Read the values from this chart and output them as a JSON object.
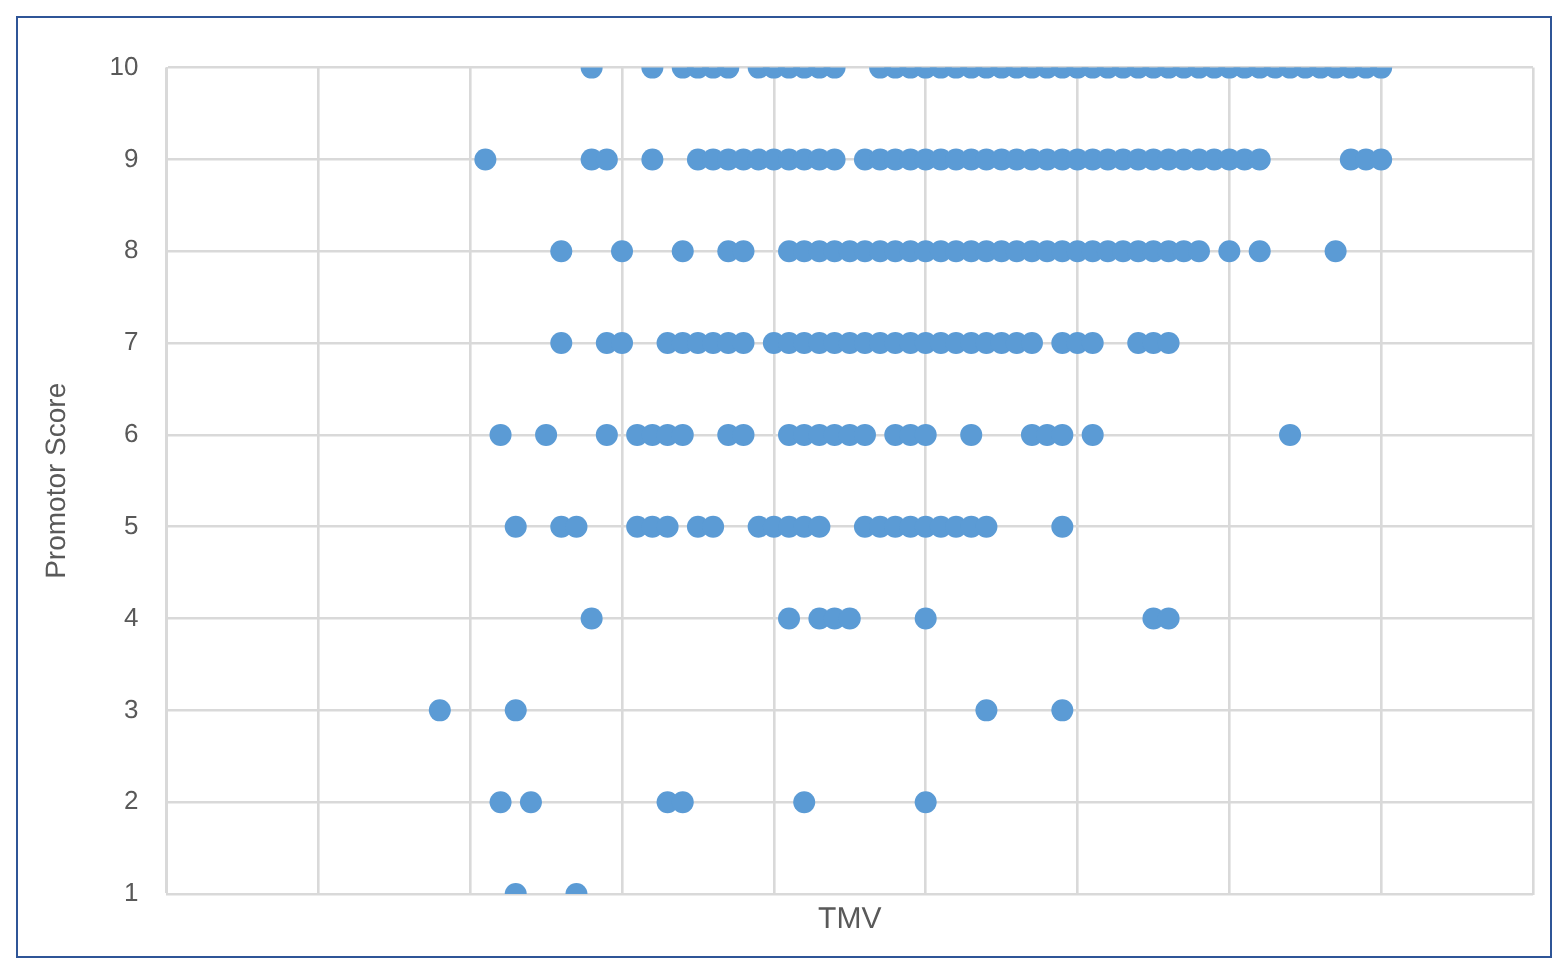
{
  "chart_data": {
    "type": "scatter",
    "xlabel": "TMV",
    "ylabel": "Promotor Score",
    "categories": [
      null,
      null,
      null,
      null,
      null,
      null,
      null,
      null,
      null,
      null,
      null,
      null,
      null,
      null,
      null,
      null,
      null,
      null,
      null,
      null,
      null,
      null,
      null,
      null,
      null,
      null,
      null,
      null,
      null,
      null,
      null,
      null,
      null,
      null,
      null,
      null,
      null,
      null,
      null,
      null,
      null,
      null,
      null,
      null,
      null,
      null,
      null,
      null,
      null,
      null,
      null,
      null,
      null,
      null,
      null,
      null,
      null,
      null,
      null,
      null,
      null,
      null,
      null,
      null,
      null,
      null,
      null,
      null,
      null,
      null,
      null,
      null,
      null,
      null,
      null,
      null,
      null,
      null,
      null,
      null,
      null,
      null,
      null,
      null,
      null,
      null,
      null,
      null,
      null,
      null,
      null
    ],
    "ylim": [
      1,
      10
    ],
    "yticks": [
      1,
      2,
      3,
      4,
      5,
      6,
      7,
      8,
      9,
      10
    ],
    "tick_labels": "y",
    "grid": true,
    "legend": false,
    "marker": "circle",
    "series": [
      {
        "color": "#5b9bd5",
        "values": [
          null,
          null,
          null,
          null,
          null,
          null,
          null,
          null,
          null,
          null,
          null,
          null,
          null,
          null,
          null,
          null,
          null,
          null,
          null,
          null,
          null,
          null,
          null,
          null,
          null,
          null,
          null,
          null,
          10,
          null,
          null,
          null,
          10,
          null,
          10,
          10,
          10,
          10,
          null,
          10,
          10,
          10,
          10,
          10,
          10,
          null,
          null,
          10,
          10,
          10,
          10,
          10,
          10,
          10,
          10,
          10,
          10,
          10,
          10,
          10,
          10,
          10,
          10,
          10,
          10,
          10,
          10,
          10,
          10,
          10,
          10,
          10,
          10,
          10,
          10,
          10,
          10,
          10,
          10,
          10,
          10,
          null,
          null,
          null,
          null,
          null,
          null,
          null,
          null,
          null,
          null
        ]
      },
      {
        "color": "#5b9bd5",
        "values": [
          null,
          null,
          null,
          null,
          null,
          null,
          null,
          null,
          null,
          null,
          null,
          null,
          null,
          null,
          null,
          null,
          null,
          null,
          null,
          null,
          null,
          9,
          null,
          null,
          null,
          null,
          null,
          null,
          9,
          9,
          null,
          null,
          9,
          null,
          null,
          9,
          9,
          9,
          9,
          9,
          9,
          9,
          9,
          9,
          9,
          null,
          9,
          9,
          9,
          9,
          9,
          9,
          9,
          9,
          9,
          9,
          9,
          9,
          9,
          9,
          9,
          9,
          9,
          9,
          9,
          9,
          9,
          9,
          9,
          9,
          9,
          9,
          9,
          null,
          null,
          null,
          null,
          null,
          9,
          9,
          9,
          null,
          null,
          null,
          null,
          null,
          null,
          null,
          null,
          null,
          null
        ]
      },
      {
        "color": "#5b9bd5",
        "values": [
          null,
          null,
          null,
          null,
          null,
          null,
          null,
          null,
          null,
          null,
          null,
          null,
          null,
          null,
          null,
          null,
          null,
          null,
          null,
          null,
          null,
          null,
          null,
          null,
          null,
          null,
          8,
          null,
          null,
          null,
          8,
          null,
          null,
          null,
          8,
          null,
          null,
          8,
          8,
          null,
          null,
          8,
          8,
          8,
          8,
          8,
          8,
          8,
          8,
          8,
          8,
          8,
          8,
          8,
          8,
          8,
          8,
          8,
          8,
          8,
          8,
          8,
          8,
          8,
          8,
          8,
          8,
          8,
          8,
          null,
          8,
          null,
          8,
          null,
          null,
          null,
          null,
          8,
          null,
          null,
          null,
          null,
          null,
          null,
          null,
          null,
          null,
          null,
          null,
          null,
          null
        ]
      },
      {
        "color": "#5b9bd5",
        "values": [
          null,
          null,
          null,
          null,
          null,
          null,
          null,
          null,
          null,
          null,
          null,
          null,
          null,
          null,
          null,
          null,
          null,
          null,
          null,
          null,
          null,
          null,
          null,
          null,
          null,
          null,
          7,
          null,
          null,
          7,
          7,
          null,
          null,
          7,
          7,
          7,
          7,
          7,
          7,
          null,
          7,
          7,
          7,
          7,
          7,
          7,
          7,
          7,
          7,
          7,
          7,
          7,
          7,
          7,
          7,
          7,
          7,
          7,
          null,
          7,
          7,
          7,
          null,
          null,
          7,
          7,
          7,
          null,
          null,
          null,
          null,
          null,
          null,
          null,
          null,
          null,
          null,
          null,
          null,
          null,
          null,
          null,
          null,
          null,
          null,
          null,
          null,
          null,
          null,
          null,
          null
        ]
      },
      {
        "color": "#5b9bd5",
        "values": [
          null,
          null,
          null,
          null,
          null,
          null,
          null,
          null,
          null,
          null,
          null,
          null,
          null,
          null,
          null,
          null,
          null,
          null,
          null,
          null,
          null,
          null,
          6,
          null,
          null,
          6,
          null,
          null,
          null,
          6,
          null,
          6,
          6,
          6,
          6,
          null,
          null,
          6,
          6,
          null,
          null,
          6,
          6,
          6,
          6,
          6,
          6,
          null,
          6,
          6,
          6,
          null,
          null,
          6,
          null,
          null,
          null,
          6,
          6,
          6,
          null,
          6,
          null,
          null,
          null,
          null,
          null,
          null,
          null,
          null,
          null,
          null,
          null,
          null,
          6,
          null,
          null,
          null,
          null,
          null,
          null,
          null,
          null,
          null,
          null,
          null,
          null,
          null,
          null,
          null,
          null
        ]
      },
      {
        "color": "#5b9bd5",
        "values": [
          null,
          null,
          null,
          null,
          null,
          null,
          null,
          null,
          null,
          null,
          null,
          null,
          null,
          null,
          null,
          null,
          null,
          null,
          null,
          null,
          null,
          null,
          null,
          5,
          null,
          null,
          5,
          5,
          null,
          null,
          null,
          5,
          5,
          5,
          null,
          5,
          5,
          null,
          null,
          5,
          5,
          5,
          5,
          5,
          null,
          null,
          5,
          5,
          5,
          5,
          5,
          5,
          5,
          5,
          5,
          null,
          null,
          null,
          null,
          5,
          null,
          null,
          null,
          null,
          null,
          null,
          null,
          null,
          null,
          null,
          null,
          null,
          null,
          null,
          null,
          null,
          null,
          null,
          null,
          null,
          null,
          null,
          null,
          null,
          null,
          null,
          null,
          null,
          null,
          null,
          null
        ]
      },
      {
        "color": "#5b9bd5",
        "values": [
          null,
          null,
          null,
          null,
          null,
          null,
          null,
          null,
          null,
          null,
          null,
          null,
          null,
          null,
          null,
          null,
          null,
          null,
          null,
          null,
          null,
          null,
          null,
          null,
          null,
          null,
          null,
          null,
          4,
          null,
          null,
          null,
          null,
          null,
          null,
          null,
          null,
          null,
          null,
          null,
          null,
          4,
          null,
          4,
          4,
          4,
          null,
          null,
          null,
          null,
          4,
          null,
          null,
          null,
          null,
          null,
          null,
          null,
          null,
          null,
          null,
          null,
          null,
          null,
          null,
          4,
          4,
          null,
          null,
          null,
          null,
          null,
          null,
          null,
          null,
          null,
          null,
          null,
          null,
          null,
          null,
          null,
          null,
          null,
          null,
          null,
          null,
          null,
          null,
          null,
          null
        ]
      },
      {
        "color": "#5b9bd5",
        "values": [
          null,
          null,
          null,
          null,
          null,
          null,
          null,
          null,
          null,
          null,
          null,
          null,
          null,
          null,
          null,
          null,
          null,
          null,
          3,
          null,
          null,
          null,
          null,
          3,
          null,
          null,
          null,
          null,
          null,
          null,
          null,
          null,
          null,
          null,
          null,
          null,
          null,
          null,
          null,
          null,
          null,
          null,
          null,
          null,
          null,
          null,
          null,
          null,
          null,
          null,
          null,
          null,
          null,
          null,
          3,
          null,
          null,
          null,
          null,
          3,
          null,
          null,
          null,
          null,
          null,
          null,
          null,
          null,
          null,
          null,
          null,
          null,
          null,
          null,
          null,
          null,
          null,
          null,
          null,
          null,
          null,
          null,
          null,
          null,
          null,
          null,
          null,
          null,
          null,
          null,
          null
        ]
      },
      {
        "color": "#5b9bd5",
        "values": [
          null,
          null,
          null,
          null,
          null,
          null,
          null,
          null,
          null,
          null,
          null,
          null,
          null,
          null,
          null,
          null,
          null,
          null,
          null,
          null,
          null,
          null,
          2,
          null,
          2,
          null,
          null,
          null,
          null,
          null,
          null,
          null,
          null,
          2,
          2,
          null,
          null,
          null,
          null,
          null,
          null,
          null,
          2,
          null,
          null,
          null,
          null,
          null,
          null,
          null,
          2,
          null,
          null,
          null,
          null,
          null,
          null,
          null,
          null,
          null,
          null,
          null,
          null,
          null,
          null,
          null,
          null,
          null,
          null,
          null,
          null,
          null,
          null,
          null,
          null,
          null,
          null,
          null,
          null,
          null,
          null,
          null,
          null,
          null,
          null,
          null,
          null,
          null,
          null,
          null,
          null
        ]
      },
      {
        "color": "#5b9bd5",
        "values": [
          null,
          null,
          null,
          null,
          null,
          null,
          null,
          null,
          null,
          null,
          null,
          null,
          null,
          null,
          null,
          null,
          null,
          null,
          null,
          null,
          null,
          null,
          null,
          1,
          null,
          null,
          null,
          1,
          null,
          null,
          null,
          null,
          null,
          null,
          null,
          null,
          null,
          null,
          null,
          null,
          null,
          null,
          null,
          null,
          null,
          null,
          null,
          null,
          null,
          null,
          null,
          null,
          null,
          null,
          null,
          null,
          null,
          null,
          null,
          null,
          null,
          null,
          null,
          null,
          null,
          null,
          null,
          null,
          null,
          null,
          null,
          null,
          null,
          null,
          null,
          null,
          null,
          null,
          null,
          null,
          null,
          null,
          null,
          null,
          null,
          null,
          null,
          null,
          null,
          null,
          null
        ]
      }
    ]
  }
}
